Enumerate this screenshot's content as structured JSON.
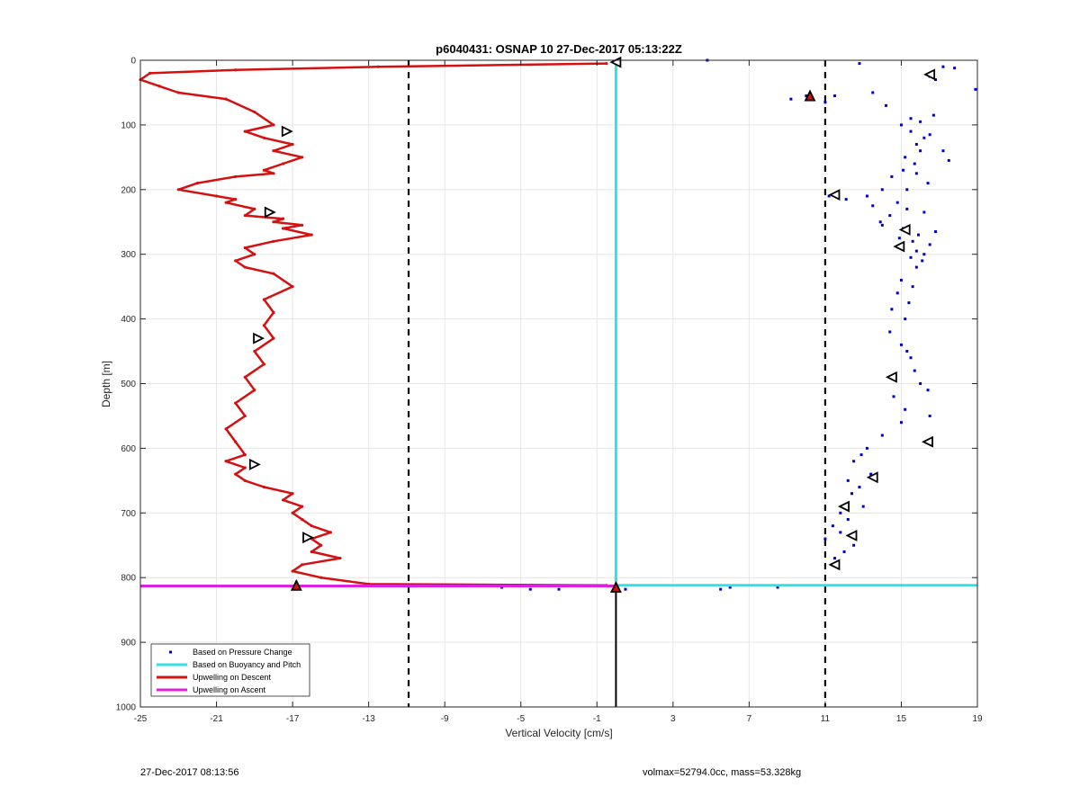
{
  "chart_data": {
    "type": "line",
    "title": "p6040431: OSNAP 10 27-Dec-2017 05:13:22Z",
    "xlabel": "Vertical Velocity [cm/s]",
    "ylabel": "Depth [m]",
    "xlim": [
      -25,
      19
    ],
    "ylim": [
      0,
      1000
    ],
    "y_reversed": true,
    "xticks": [
      -25,
      -21,
      -17,
      -13,
      -9,
      -5,
      -1,
      3,
      7,
      11,
      15,
      19
    ],
    "yticks": [
      0,
      100,
      200,
      300,
      400,
      500,
      600,
      700,
      800,
      900,
      1000
    ],
    "grid": true,
    "legend_position": "bottom-left",
    "colors": {
      "pressure": "#0000cc",
      "buoyancy": "#33e0e6",
      "descent": "#d41010",
      "ascent": "#e020e0",
      "bounds": "#000000"
    },
    "series": [
      {
        "name": "Based on Pressure Change",
        "style": "points",
        "x": [
          4.8,
          12.8,
          17.2,
          16.5,
          17.8,
          18.9,
          16.8,
          10.0,
          9.2,
          11.0,
          11.5,
          13.5,
          14.2,
          15.5,
          15.0,
          16.0,
          16.7,
          15.5,
          16.2,
          15.8,
          16.5,
          17.2,
          15.2,
          16.0,
          15.7,
          17.5,
          15.1,
          14.5,
          15.8,
          16.4,
          15.3,
          14.0,
          11.2,
          13.2,
          12.1,
          14.8,
          13.5,
          15.3,
          14.4,
          16.2,
          13.9,
          15.1,
          14.0,
          16.8,
          14.9,
          15.6,
          15.9,
          16.5,
          15.8,
          16.2,
          15.5,
          16.1,
          15.8,
          15.0,
          15.6,
          14.8,
          15.4,
          14.5,
          15.2,
          14.4,
          15.0,
          15.3,
          15.5,
          15.7,
          16.0,
          16.4,
          14.6,
          15.2,
          16.5,
          15.0,
          14.0,
          13.2,
          12.9,
          12.5,
          13.4,
          12.2,
          12.8,
          12.4,
          13.0,
          11.8,
          12.2,
          11.4,
          11.8,
          11.0,
          12.5,
          12.0,
          11.5,
          -9.5,
          -6.0,
          -4.5,
          -3.0,
          0.5,
          5.5,
          6.0,
          8.5
        ],
        "y": [
          0,
          5,
          10,
          25,
          12,
          45,
          30,
          55,
          60,
          65,
          55,
          50,
          70,
          90,
          100,
          95,
          85,
          110,
          120,
          130,
          115,
          140,
          150,
          140,
          160,
          155,
          170,
          180,
          175,
          190,
          200,
          200,
          210,
          210,
          215,
          220,
          225,
          230,
          240,
          235,
          250,
          260,
          255,
          265,
          275,
          280,
          270,
          285,
          295,
          300,
          305,
          310,
          320,
          340,
          350,
          360,
          375,
          385,
          400,
          420,
          440,
          450,
          460,
          480,
          500,
          510,
          520,
          540,
          550,
          560,
          580,
          600,
          610,
          620,
          640,
          650,
          660,
          670,
          690,
          700,
          710,
          720,
          730,
          740,
          750,
          760,
          770,
          812,
          815,
          818,
          818,
          818,
          818,
          815,
          815
        ]
      },
      {
        "name": "Based on Buoyancy and Pitch",
        "style": "line",
        "x": [
          0,
          0,
          19
        ],
        "y": [
          0,
          812,
          812
        ]
      },
      {
        "name": "Upwelling on Descent",
        "style": "line-markers",
        "x": [
          -0.5,
          -12.5,
          -20,
          -24.5,
          -25,
          -24,
          -23,
          -20.5,
          -19,
          -18,
          -19.5,
          -18.5,
          -17,
          -18,
          -16.5,
          -17.5,
          -18.5,
          -18,
          -20,
          -22,
          -23,
          -21,
          -20,
          -20.5,
          -19,
          -19.5,
          -17.5,
          -18,
          -16.5,
          -17.5,
          -16,
          -18,
          -19.5,
          -19,
          -20,
          -19.5,
          -18,
          -17,
          -18.5,
          -18,
          -18.5,
          -18,
          -19,
          -18.5,
          -19.5,
          -19,
          -20,
          -19.5,
          -20.5,
          -20,
          -19.5,
          -20.5,
          -19.5,
          -20,
          -19.5,
          -18.5,
          -17,
          -17.5,
          -16.5,
          -17,
          -16.5,
          -16,
          -15,
          -16,
          -15.5,
          -16,
          -14.5,
          -16.5,
          -17,
          -15.5,
          -13,
          -0.5
        ],
        "y": [
          5,
          10,
          15,
          20,
          30,
          40,
          50,
          60,
          80,
          100,
          110,
          120,
          130,
          140,
          150,
          160,
          170,
          175,
          180,
          190,
          200,
          210,
          215,
          220,
          230,
          240,
          245,
          250,
          255,
          260,
          270,
          280,
          290,
          300,
          310,
          320,
          330,
          350,
          370,
          390,
          410,
          430,
          450,
          470,
          490,
          510,
          530,
          550,
          570,
          590,
          610,
          620,
          630,
          640,
          650,
          660,
          670,
          680,
          690,
          700,
          710,
          720,
          730,
          740,
          750,
          760,
          770,
          780,
          790,
          800,
          810,
          812
        ]
      },
      {
        "name": "Upwelling on Ascent",
        "style": "line",
        "x": [
          -25,
          0
        ],
        "y": [
          813,
          813
        ]
      }
    ],
    "markers": [
      {
        "shape": "triangle-left",
        "x": 0,
        "y": 3
      },
      {
        "shape": "triangle-up",
        "x": 10.2,
        "y": 55
      },
      {
        "shape": "triangle-left",
        "x": 16.5,
        "y": 22
      },
      {
        "shape": "triangle-right",
        "x": -17.3,
        "y": 110
      },
      {
        "shape": "triangle-right",
        "x": -18.2,
        "y": 235
      },
      {
        "shape": "triangle-right",
        "x": -18.8,
        "y": 430
      },
      {
        "shape": "triangle-right",
        "x": -19.0,
        "y": 625
      },
      {
        "shape": "triangle-right",
        "x": -16.2,
        "y": 738
      },
      {
        "shape": "triangle-up",
        "x": -16.8,
        "y": 812
      },
      {
        "shape": "triangle-left",
        "x": 11.5,
        "y": 208
      },
      {
        "shape": "triangle-left",
        "x": 15.2,
        "y": 262
      },
      {
        "shape": "triangle-left",
        "x": 14.9,
        "y": 288
      },
      {
        "shape": "triangle-left",
        "x": 14.5,
        "y": 490
      },
      {
        "shape": "triangle-left",
        "x": 16.4,
        "y": 590
      },
      {
        "shape": "triangle-left",
        "x": 13.5,
        "y": 645
      },
      {
        "shape": "triangle-left",
        "x": 12.0,
        "y": 690
      },
      {
        "shape": "triangle-left",
        "x": 12.4,
        "y": 735
      },
      {
        "shape": "triangle-left",
        "x": 11.5,
        "y": 780
      },
      {
        "shape": "triangle-up",
        "x": 0,
        "y": 815
      }
    ],
    "reference_lines": {
      "vertical_dashed_x": [
        -10.9,
        11.0
      ],
      "bottom_line": {
        "x": 0,
        "y_from": 815,
        "y_to": 1000
      }
    }
  },
  "footer": {
    "timestamp": "27-Dec-2017 08:13:56",
    "info": "volmax=52794.0cc, mass=53.328kg"
  }
}
